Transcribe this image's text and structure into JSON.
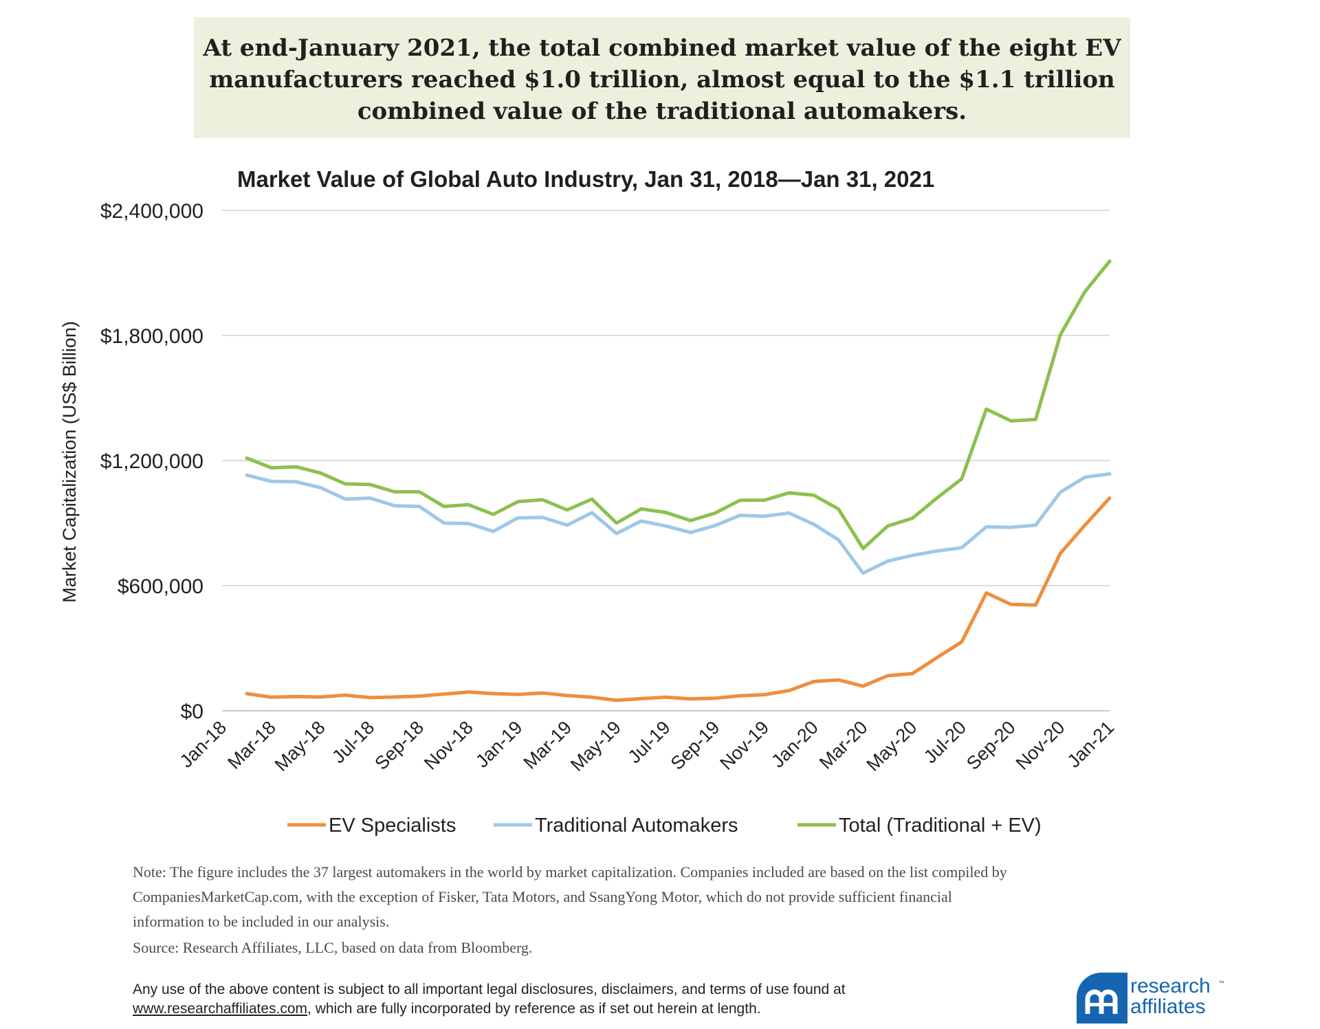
{
  "headline": "At end-January 2021, the total combined market value of the eight EV\nmanufacturers reached $1.0 trillion, almost equal to the $1.1 trillion\ncombined value of the traditional automakers.",
  "chart_data": {
    "type": "line",
    "title": "Market Value of Global Auto Industry, Jan 31, 2018—Jan 31, 2021",
    "xlabel": "",
    "ylabel": "Market Capitalization (US$ Billion)",
    "ylim": [
      0,
      2400000
    ],
    "yticks": [
      0,
      600000,
      1200000,
      1800000,
      2400000
    ],
    "ytick_labels": [
      "$0",
      "$600,000",
      "$1,200,000",
      "$1,800,000",
      "$2,400,000"
    ],
    "grid": true,
    "legend_position": "bottom",
    "xtick_labels": [
      "Jan-18",
      "Mar-18",
      "May-18",
      "Jul-18",
      "Sep-18",
      "Nov-18",
      "Jan-19",
      "Mar-19",
      "May-19",
      "Jul-19",
      "Sep-19",
      "Nov-19",
      "Jan-20",
      "Mar-20",
      "May-20",
      "Jul-20",
      "Sep-20",
      "Nov-20",
      "Jan-21"
    ],
    "x": [
      "Feb-18",
      "Mar-18",
      "Apr-18",
      "May-18",
      "Jun-18",
      "Jul-18",
      "Aug-18",
      "Sep-18",
      "Oct-18",
      "Nov-18",
      "Dec-18",
      "Jan-19",
      "Feb-19",
      "Mar-19",
      "Apr-19",
      "May-19",
      "Jun-19",
      "Jul-19",
      "Aug-19",
      "Sep-19",
      "Oct-19",
      "Nov-19",
      "Dec-19",
      "Jan-20",
      "Feb-20",
      "Mar-20",
      "Apr-20",
      "May-20",
      "Jun-20",
      "Jul-20",
      "Aug-20",
      "Sep-20",
      "Oct-20",
      "Nov-20",
      "Dec-20",
      "Jan-21"
    ],
    "series": [
      {
        "name": "EV Specialists",
        "color": "#ed8f3e",
        "values": [
          82000,
          65000,
          68000,
          66000,
          75000,
          63000,
          66000,
          70000,
          80000,
          90000,
          82000,
          78000,
          85000,
          73000,
          65000,
          50000,
          58000,
          65000,
          57000,
          60000,
          72000,
          77000,
          97000,
          140000,
          148000,
          118000,
          168000,
          178000,
          255000,
          330000,
          565000,
          510000,
          507000,
          755000,
          890000,
          1020000
        ]
      },
      {
        "name": "Traditional Automakers",
        "color": "#9dc8e8",
        "values": [
          1130000,
          1100000,
          1098000,
          1070000,
          1015000,
          1020000,
          983000,
          980000,
          900000,
          898000,
          860000,
          925000,
          927000,
          890000,
          950000,
          850000,
          910000,
          886000,
          855000,
          888000,
          937000,
          933000,
          948000,
          894000,
          820000,
          660000,
          718000,
          745000,
          766000,
          782000,
          882000,
          880000,
          890000,
          1048000,
          1120000,
          1136000
        ]
      },
      {
        "name": "Total (Traditional + EV)",
        "color": "#8dc04f",
        "values": [
          1212000,
          1165000,
          1170000,
          1140000,
          1088000,
          1085000,
          1050000,
          1050000,
          980000,
          988000,
          942000,
          1003000,
          1012000,
          963000,
          1015000,
          900000,
          968000,
          951000,
          912000,
          948000,
          1009000,
          1010000,
          1045000,
          1034000,
          968000,
          778000,
          886000,
          923000,
          1021000,
          1112000,
          1447000,
          1390000,
          1397000,
          1803000,
          2010000,
          2156000
        ]
      }
    ]
  },
  "note_lines": [
    "Note: The figure includes the 37 largest automakers in the world by market capitalization. Companies included are based on the list compiled by",
    "CompaniesMarketCap.com, with the exception of Fisker, Tata Motors, and SsangYong Motor, which do not provide sufficient financial",
    "information to be included in our analysis."
  ],
  "source": "Source: Research Affiliates, LLC, based on data from Bloomberg.",
  "disclaimer": {
    "line1": "Any use of the above content is subject to all important legal disclosures, disclaimers, and terms of use found at",
    "link_text": "www.researchaffiliates.com",
    "line2_rest": ", which are fully incorporated by reference as if set out herein at length."
  },
  "logo": {
    "line1": "research",
    "line2": "affiliates",
    "tm": "™",
    "icon": "research-affiliates-logo-icon",
    "color": "#1565b0"
  }
}
